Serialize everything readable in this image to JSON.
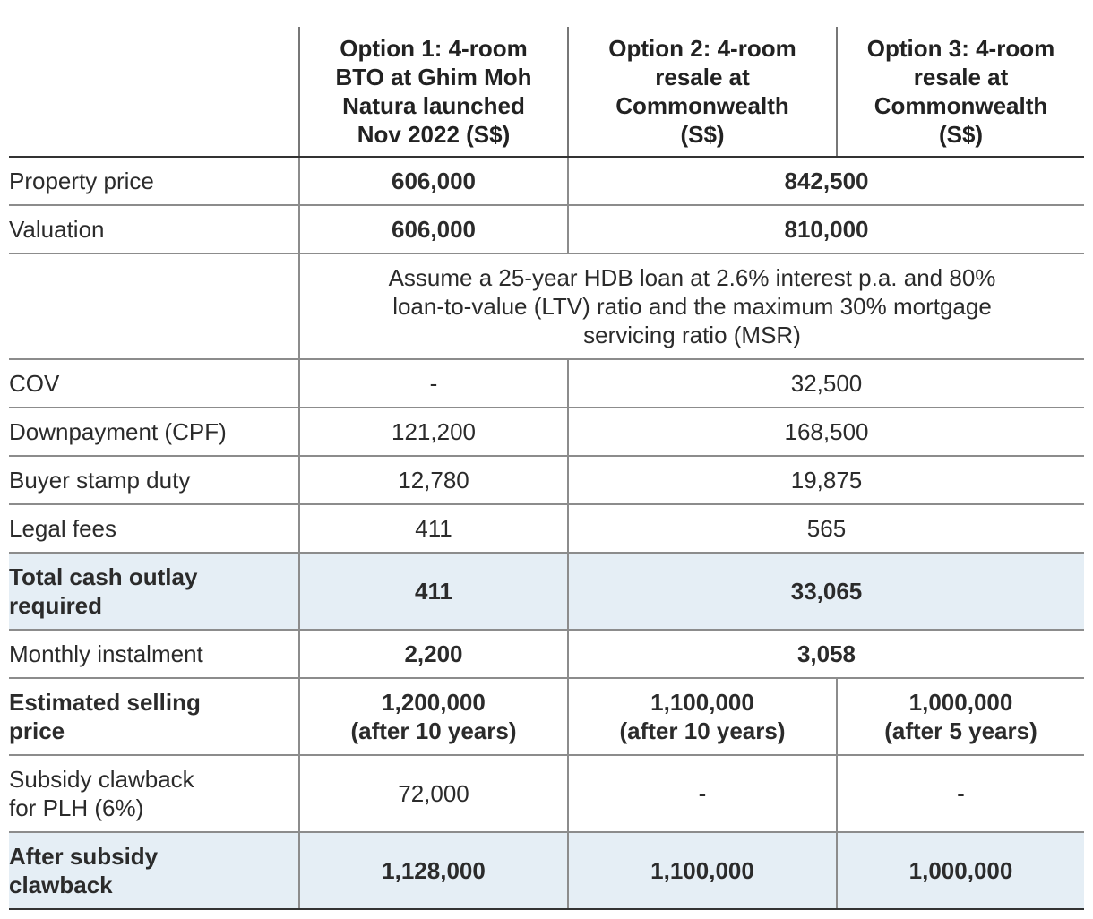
{
  "header": {
    "option1": [
      "Option 1: 4-room",
      "BTO at Ghim Moh",
      "Natura launched",
      "Nov 2022 (S$)"
    ],
    "option2": [
      "Option 2: 4-room",
      "resale at",
      "Commonwealth",
      "(S$)"
    ],
    "option3": [
      "Option 3: 4-room",
      "resale at",
      "Commonwealth",
      "(S$)"
    ]
  },
  "rows": {
    "property_price": {
      "label": "Property price",
      "opt1": "606,000",
      "resale": "842,500"
    },
    "valuation": {
      "label": "Valuation",
      "opt1": "606,000",
      "resale": "810,000"
    },
    "assumption": {
      "text": [
        "Assume a 25-year HDB loan at 2.6% interest p.a. and 80%",
        "loan-to-value (LTV) ratio and the maximum 30% mortgage",
        "servicing ratio (MSR)"
      ]
    },
    "cov": {
      "label": "COV",
      "opt1": "-",
      "resale": "32,500"
    },
    "downpayment": {
      "label": "Downpayment (CPF)",
      "opt1": "121,200",
      "resale": "168,500"
    },
    "stamp_duty": {
      "label": "Buyer stamp duty",
      "opt1": "12,780",
      "resale": "19,875"
    },
    "legal_fees": {
      "label": "Legal fees",
      "opt1": "411",
      "resale": "565"
    },
    "total_cash": {
      "label": [
        "Total cash outlay",
        "required"
      ],
      "opt1": "411",
      "resale": "33,065"
    },
    "monthly": {
      "label": "Monthly instalment",
      "opt1": "2,200",
      "resale": "3,058"
    },
    "selling_price": {
      "label": [
        "Estimated selling",
        "price"
      ],
      "opt1": [
        "1,200,000",
        "(after 10 years)"
      ],
      "opt2": [
        "1,100,000",
        "(after 10 years)"
      ],
      "opt3": [
        "1,000,000",
        "(after 5 years)"
      ]
    },
    "clawback": {
      "label": [
        "Subsidy clawback",
        "for PLH (6%)"
      ],
      "opt1": "72,000",
      "opt2": "-",
      "opt3": "-"
    },
    "after_clawback": {
      "label": [
        "After subsidy",
        "clawback"
      ],
      "opt1": "1,128,000",
      "opt2": "1,100,000",
      "opt3": "1,000,000"
    }
  },
  "colors": {
    "highlight_row": "#e5eef5",
    "rule": "#8c8c8c",
    "text": "#2b2b2b"
  }
}
